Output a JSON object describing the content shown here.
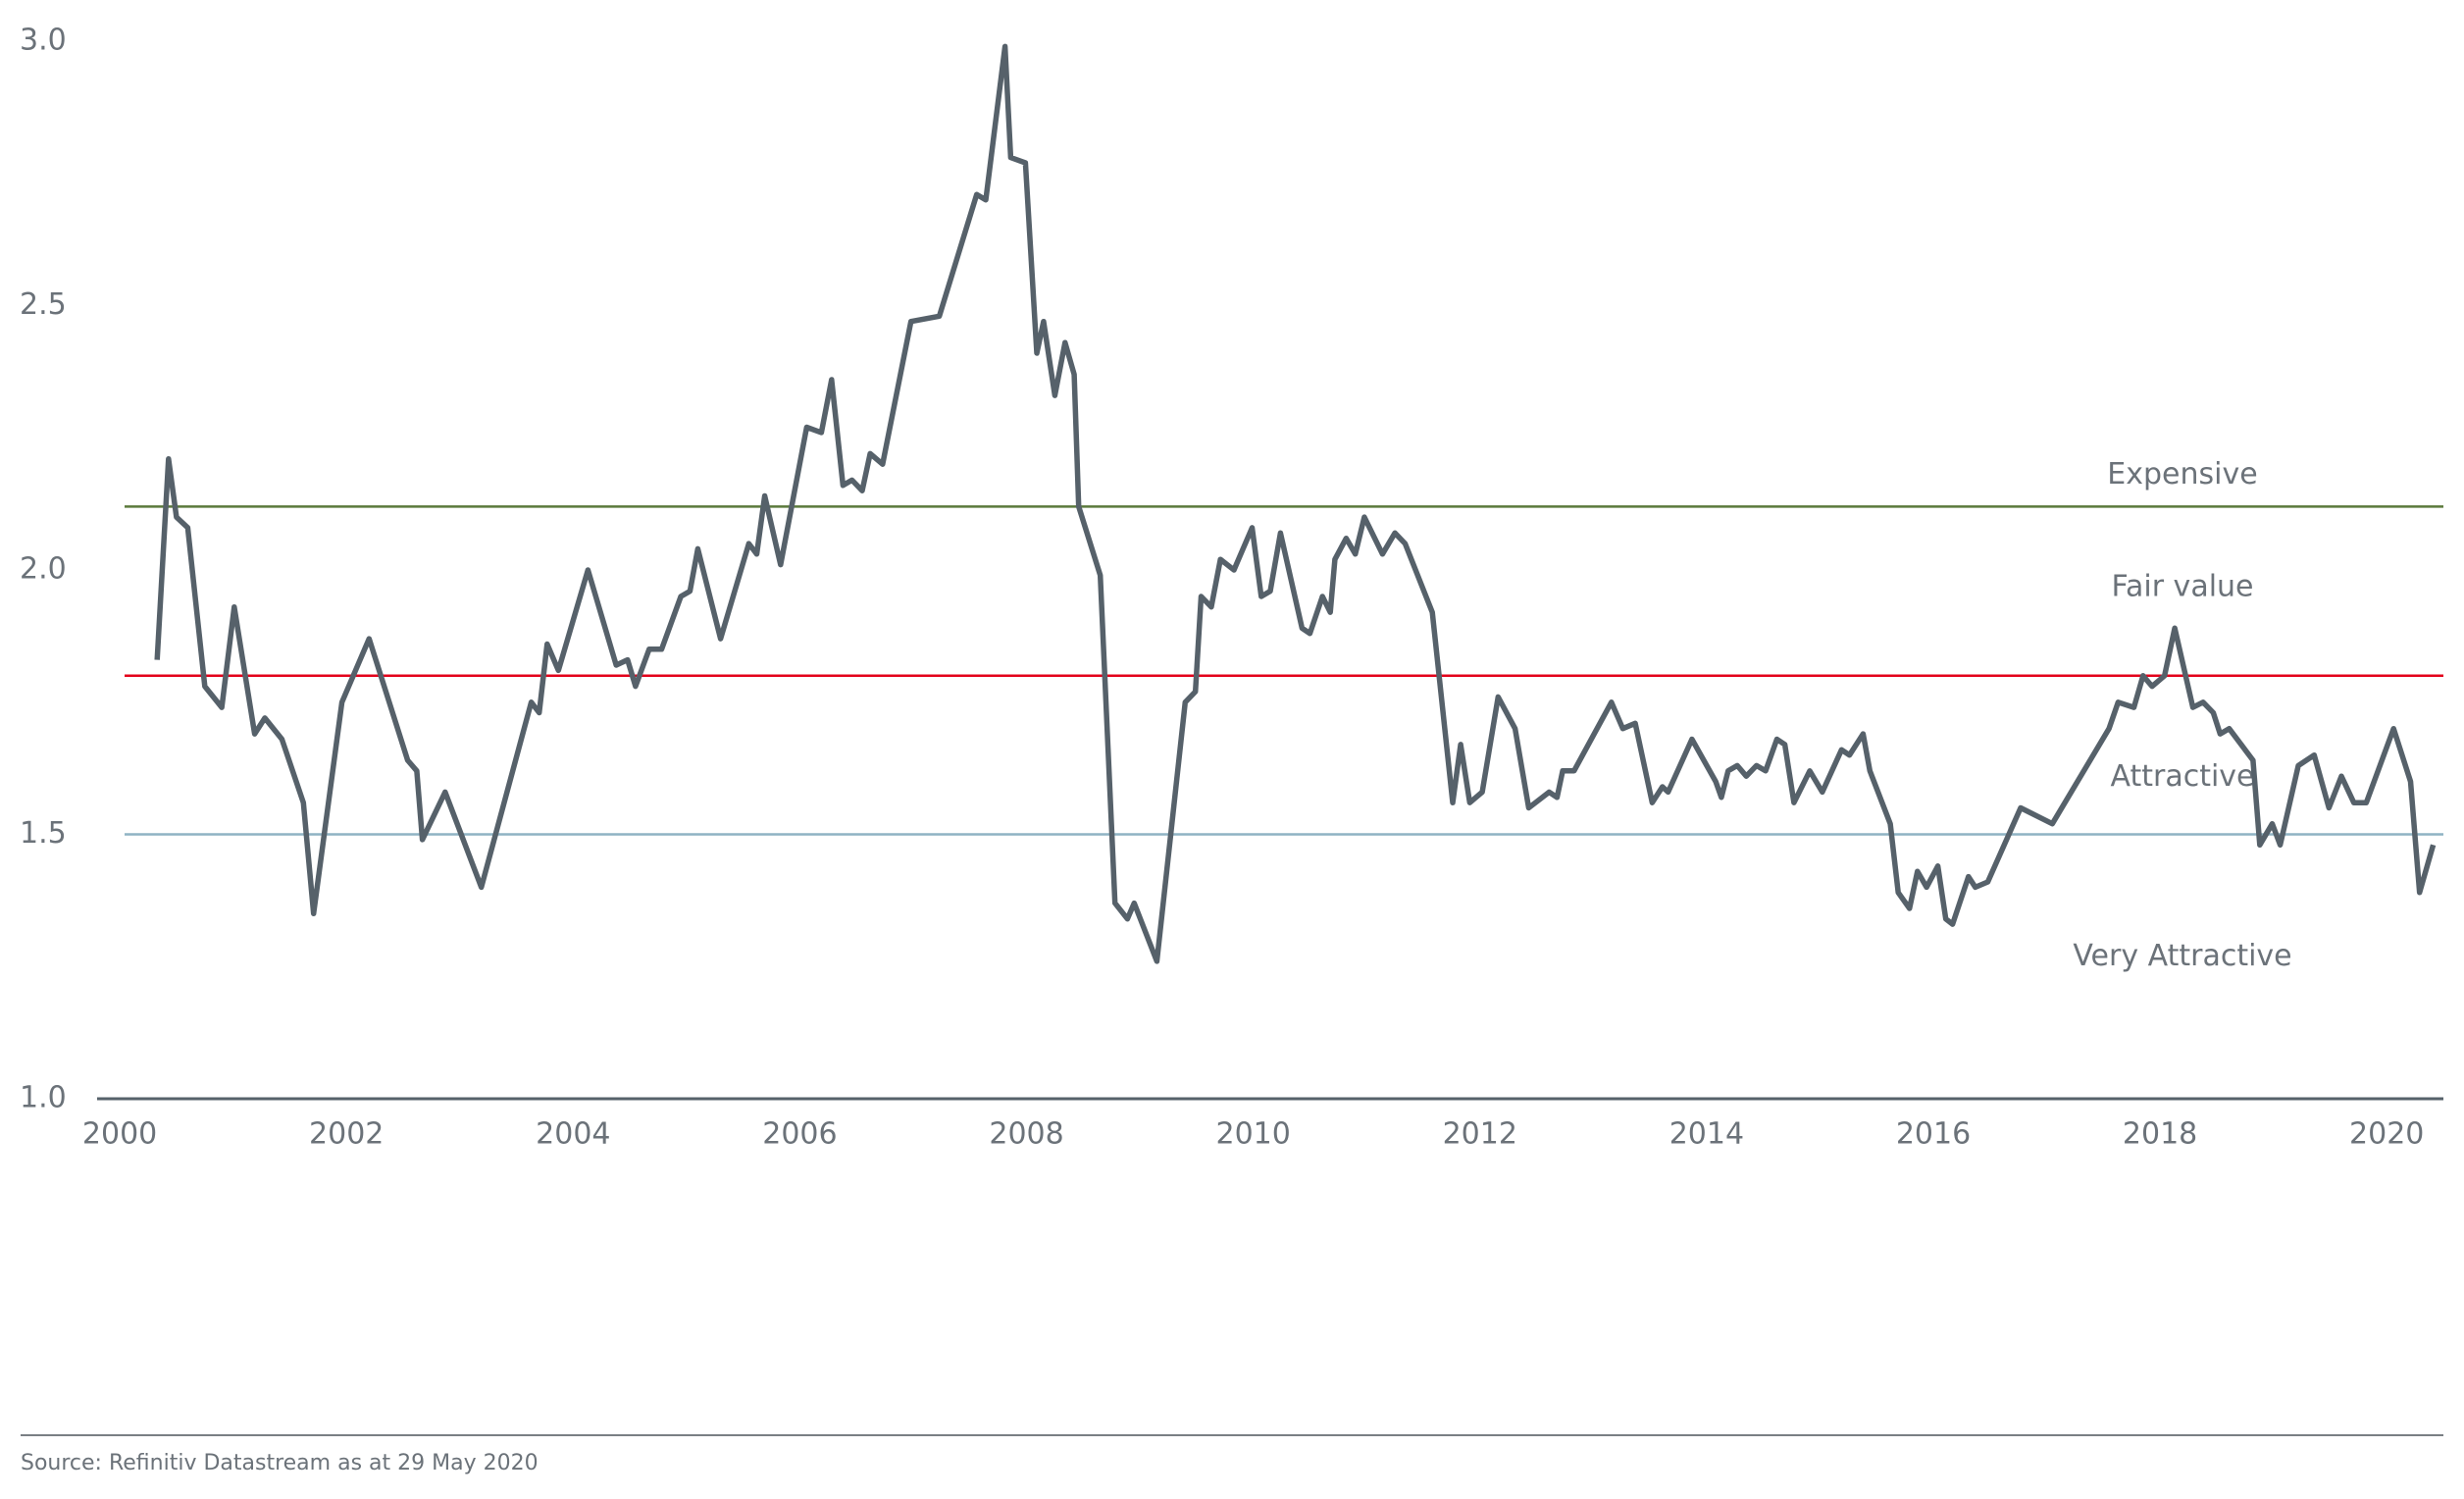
{
  "chart_data": {
    "type": "line",
    "x": [
      2000.33,
      2000.43,
      2000.5,
      2000.6,
      2000.75,
      2000.9,
      2001.01,
      2001.19,
      2001.28,
      2001.43,
      2001.62,
      2001.71,
      2001.96,
      2002.2,
      2002.54,
      2002.62,
      2002.67,
      2002.87,
      2003.19,
      2003.63,
      2003.7,
      2003.77,
      2003.87,
      2004.13,
      2004.38,
      2004.48,
      2004.55,
      2004.67,
      2004.78,
      2004.95,
      2005.03,
      2005.1,
      2005.3,
      2005.55,
      2005.62,
      2005.69,
      2005.83,
      2006.06,
      2006.19,
      2006.28,
      2006.38,
      2006.46,
      2006.55,
      2006.62,
      2006.73,
      2006.98,
      2007.23,
      2007.56,
      2007.64,
      2007.81,
      2007.86,
      2007.99,
      2008.09,
      2008.15,
      2008.25,
      2008.34,
      2008.42,
      2008.46,
      2008.65,
      2008.78,
      2008.89,
      2008.95,
      2009.15,
      2009.4,
      2009.49,
      2009.54,
      2009.63,
      2009.71,
      2009.83,
      2009.99,
      2010.07,
      2010.15,
      2010.24,
      2010.43,
      2010.5,
      2010.61,
      2010.68,
      2010.72,
      2010.82,
      2010.9,
      2010.98,
      2011.14,
      2011.25,
      2011.34,
      2011.58,
      2011.76,
      2011.83,
      2011.91,
      2012.02,
      2012.16,
      2012.31,
      2012.43,
      2012.61,
      2012.68,
      2012.73,
      2012.83,
      2013.16,
      2013.26,
      2013.37,
      2013.52,
      2013.61,
      2013.66,
      2013.87,
      2014.08,
      2014.13,
      2014.19,
      2014.27,
      2014.35,
      2014.44,
      2014.52,
      2014.62,
      2014.69,
      2014.77,
      2014.91,
      2015.02,
      2015.19,
      2015.26,
      2015.38,
      2015.44,
      2015.62,
      2015.69,
      2015.79,
      2015.86,
      2015.94,
      2016.04,
      2016.11,
      2016.17,
      2016.31,
      2016.37,
      2016.48,
      2016.77,
      2017.05,
      2017.55,
      2017.63,
      2017.77,
      2017.85,
      2017.93,
      2018.04,
      2018.13,
      2018.29,
      2018.38,
      2018.47,
      2018.53,
      2018.61,
      2018.82,
      2018.88,
      2018.99,
      2019.06,
      2019.22,
      2019.36,
      2019.49,
      2019.6,
      2019.71,
      2019.82,
      2020.06,
      2020.21,
      2020.29,
      2020.41
    ],
    "series": [
      {
        "color": "#56616a",
        "values": [
          1.83,
          2.21,
          2.1,
          2.08,
          1.78,
          1.74,
          1.93,
          1.69,
          1.72,
          1.68,
          1.56,
          1.35,
          1.75,
          1.87,
          1.64,
          1.62,
          1.49,
          1.58,
          1.4,
          1.75,
          1.73,
          1.86,
          1.81,
          2.0,
          1.82,
          1.83,
          1.78,
          1.85,
          1.85,
          1.95,
          1.96,
          2.04,
          1.87,
          2.05,
          2.03,
          2.14,
          2.01,
          2.27,
          2.26,
          2.36,
          2.16,
          2.17,
          2.15,
          2.22,
          2.2,
          2.47,
          2.48,
          2.71,
          2.7,
          2.99,
          2.78,
          2.77,
          2.41,
          2.47,
          2.33,
          2.43,
          2.37,
          2.12,
          1.99,
          1.37,
          1.34,
          1.37,
          1.26,
          1.75,
          1.77,
          1.95,
          1.93,
          2.02,
          2.0,
          2.08,
          1.95,
          1.96,
          2.07,
          1.89,
          1.88,
          1.95,
          1.92,
          2.02,
          2.06,
          2.03,
          2.1,
          2.03,
          2.07,
          2.05,
          1.92,
          1.56,
          1.67,
          1.56,
          1.58,
          1.76,
          1.7,
          1.55,
          1.58,
          1.57,
          1.62,
          1.62,
          1.75,
          1.7,
          1.71,
          1.56,
          1.59,
          1.58,
          1.68,
          1.6,
          1.57,
          1.62,
          1.63,
          1.61,
          1.63,
          1.62,
          1.68,
          1.67,
          1.56,
          1.62,
          1.58,
          1.66,
          1.65,
          1.69,
          1.62,
          1.52,
          1.39,
          1.36,
          1.43,
          1.4,
          1.44,
          1.34,
          1.33,
          1.42,
          1.4,
          1.41,
          1.55,
          1.52,
          1.7,
          1.75,
          1.74,
          1.8,
          1.78,
          1.8,
          1.89,
          1.74,
          1.75,
          1.73,
          1.69,
          1.7,
          1.64,
          1.48,
          1.52,
          1.48,
          1.63,
          1.65,
          1.55,
          1.61,
          1.56,
          1.56,
          1.7,
          1.6,
          1.39,
          1.48
        ]
      }
    ],
    "reference_lines": [
      {
        "label": "Expensive",
        "value": 2.12,
        "color": "#5b7a3c"
      },
      {
        "label": "Fair value",
        "value": 1.8,
        "color": "#e3001b"
      },
      {
        "label": "Attractive",
        "value": 1.5,
        "color": "#8fb3c4"
      }
    ],
    "annotation": "Very Attractive",
    "xlim": [
      1999.8,
      2020.5
    ],
    "xticks": [
      2000,
      2002,
      2004,
      2006,
      2008,
      2010,
      2012,
      2014,
      2016,
      2018,
      2020
    ],
    "ylim": [
      1.0,
      3.0
    ],
    "yticks": [
      {
        "value": 1.0,
        "label": "1.0"
      },
      1.5,
      {
        "value": 2.0,
        "label": "2.0"
      },
      2.5,
      {
        "value": 3.0,
        "label": "3.0"
      }
    ],
    "source": "Source: Refinitiv Datastream as at 29 May 2020"
  }
}
